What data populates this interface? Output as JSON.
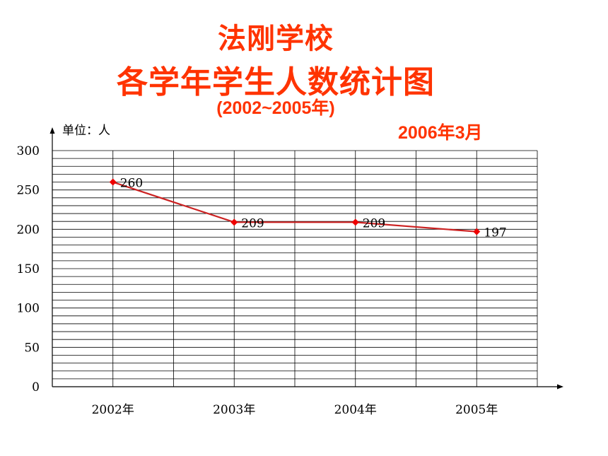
{
  "header": {
    "title_line1": "法刚学校",
    "title_line2": "各学年学生人数统计图",
    "subtitle": "(2002~2005年)",
    "date": "2006年3月"
  },
  "chart_data": {
    "type": "line",
    "title": "法刚学校 各学年学生人数统计图",
    "subtitle": "(2002~2005年)",
    "ylabel": "单位：人",
    "xlabel": "",
    "categories": [
      "2002年",
      "2003年",
      "2004年",
      "2005年"
    ],
    "values": [
      260,
      209,
      209,
      197
    ],
    "data_labels": [
      "260",
      "209",
      "209",
      "197"
    ],
    "ylim": [
      0,
      300
    ],
    "yticks": [
      "0",
      "50",
      "100",
      "150",
      "200",
      "250",
      "300"
    ],
    "ytick_values": [
      0,
      50,
      100,
      150,
      200,
      250,
      300
    ],
    "minor_gridline_step": 10,
    "grid": true,
    "line_color": "#cc2222",
    "marker_color": "#ee0000"
  }
}
